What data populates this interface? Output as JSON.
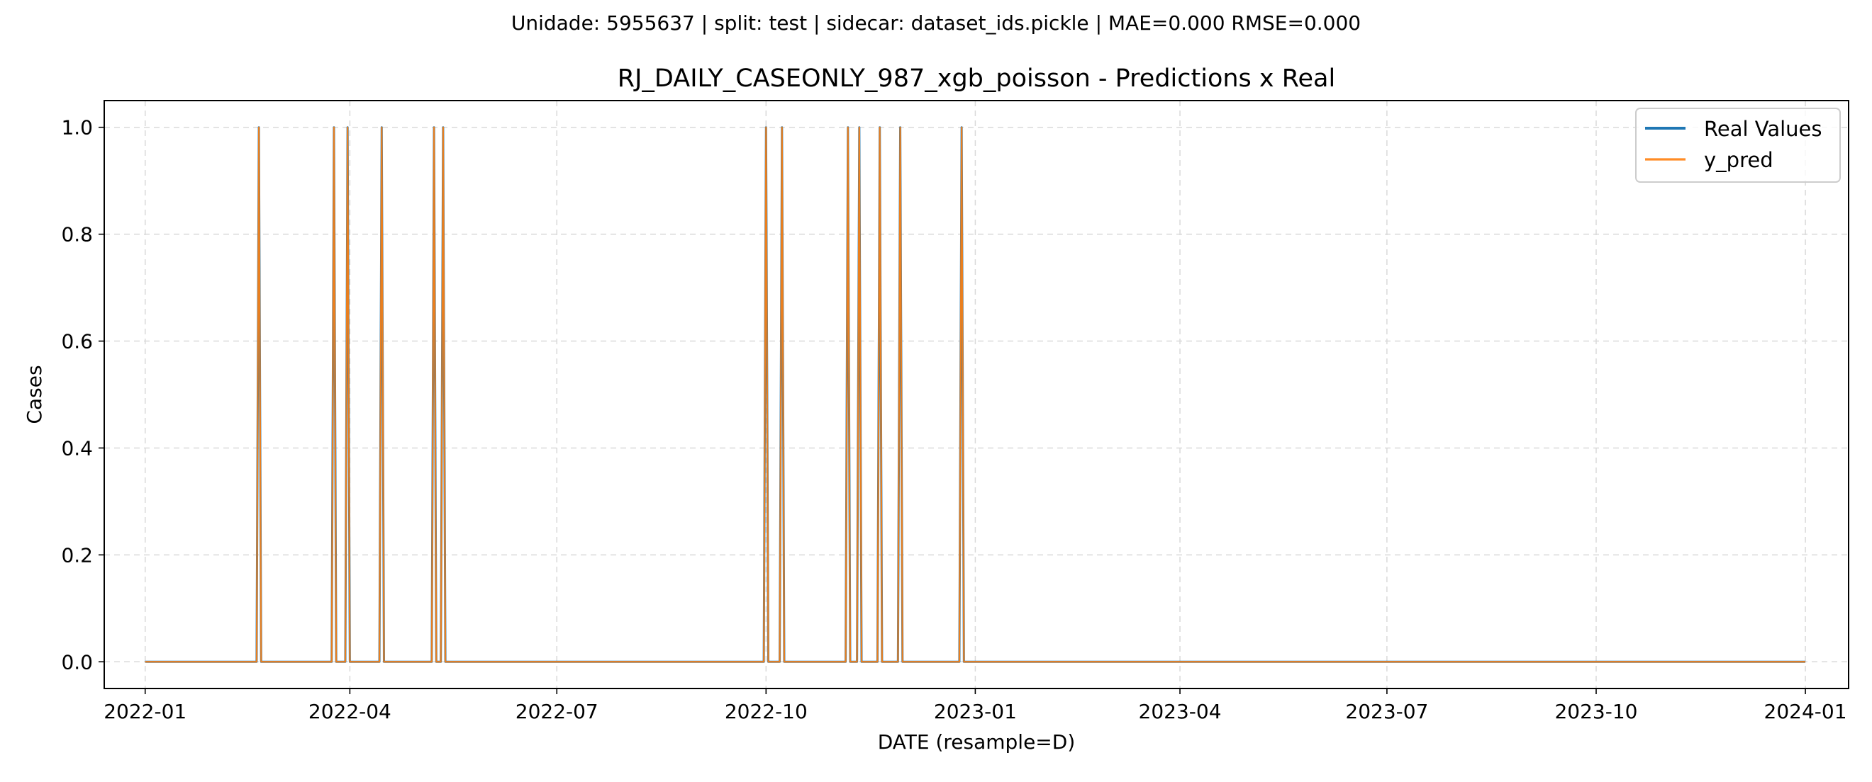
{
  "chart_data": {
    "type": "line",
    "suptitle": "Unidade: 5955637 | split: test | sidecar: dataset_ids.pickle | MAE=0.000  RMSE=0.000",
    "title": "RJ_DAILY_CASEONLY_987_xgb_poisson - Predictions x Real",
    "xlabel": "DATE (resample=D)",
    "ylabel": "Cases",
    "x_range": [
      "2021-12-14",
      "2024-01-20"
    ],
    "ylim": [
      -0.05,
      1.05
    ],
    "x_ticks": [
      "2022-01-01",
      "2022-04-01",
      "2022-07-01",
      "2022-10-01",
      "2023-01-01",
      "2023-04-01",
      "2023-07-01",
      "2023-10-01",
      "2024-01-01"
    ],
    "x_tick_labels": [
      "2022-01",
      "2022-04",
      "2022-07",
      "2022-10",
      "2023-01",
      "2023-04",
      "2023-07",
      "2023-10",
      "2024-01"
    ],
    "y_ticks": [
      0.0,
      0.2,
      0.4,
      0.6,
      0.8,
      1.0
    ],
    "y_tick_labels": [
      "0.0",
      "0.2",
      "0.4",
      "0.6",
      "0.8",
      "1.0"
    ],
    "grid": true,
    "legend_position": "top-right",
    "x_start": "2022-01-01",
    "x_end": "2024-01-01",
    "baseline_value": 0,
    "peak_dates": [
      "2022-02-20",
      "2022-03-25",
      "2022-03-31",
      "2022-04-15",
      "2022-05-08",
      "2022-05-12",
      "2022-10-01",
      "2022-10-08",
      "2022-11-06",
      "2022-11-11",
      "2022-11-20",
      "2022-11-29",
      "2022-12-26"
    ],
    "peak_value": 1,
    "series": [
      {
        "name": "Real Values",
        "color": "#1f77b4",
        "line_width": 3
      },
      {
        "name": "y_pred",
        "color": "#ff7f0e",
        "line_width": 2.2,
        "opacity": 0.9
      }
    ]
  }
}
